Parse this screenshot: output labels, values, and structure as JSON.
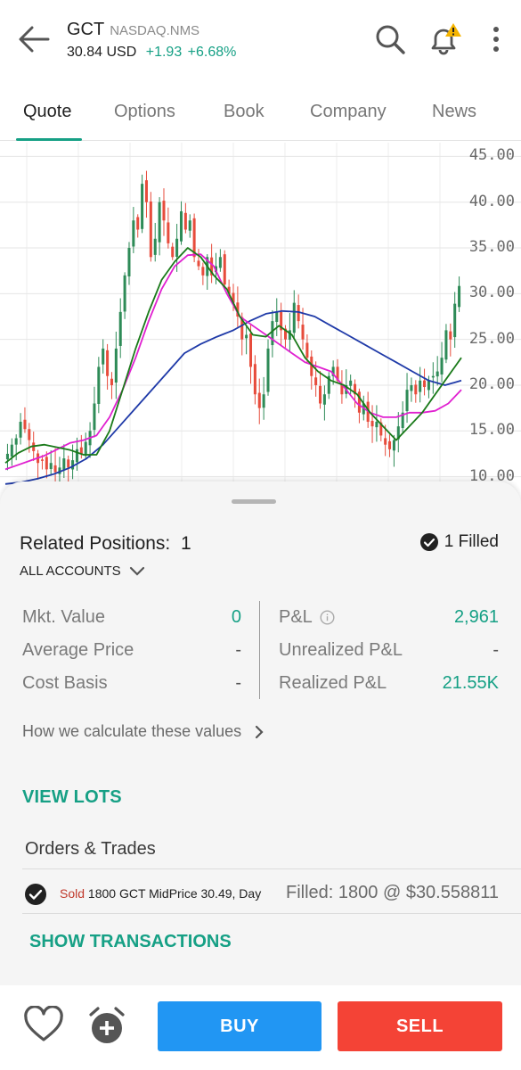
{
  "header": {
    "symbol": "GCT",
    "exchange": "NASDAQ.NMS",
    "price": "30.84",
    "currency": "USD",
    "change": "+1.93",
    "change_pct": "+6.68%",
    "icons": [
      "back-arrow-icon",
      "search-icon",
      "bell-alert-icon",
      "more-vert-icon"
    ],
    "colors": {
      "positive": "#16a085",
      "warning": "#f5b400"
    }
  },
  "tabs": [
    {
      "label": "Quote",
      "active": true
    },
    {
      "label": "Options",
      "active": false
    },
    {
      "label": "Book",
      "active": false
    },
    {
      "label": "Company",
      "active": false
    },
    {
      "label": "News",
      "active": false
    }
  ],
  "chart_data": {
    "type": "candlestick",
    "y_tick_labels": [
      "45.00",
      "40.00",
      "35.00",
      "30.00",
      "25.00",
      "20.00",
      "15.00",
      "10.00"
    ],
    "ylim": [
      8.5,
      46.5
    ],
    "grid": true,
    "colors": {
      "up": "#2e8b57",
      "down": "#e74c3c",
      "ma_fast": "#1a7a1a",
      "ma_mid": "#e020d0",
      "ma_slow": "#1f3aa8"
    },
    "closes": [
      12.5,
      13.5,
      14.2,
      16,
      15.2,
      14,
      12.8,
      11.5,
      11.8,
      10.8,
      11.5,
      10.5,
      11,
      12,
      11,
      11.8,
      13,
      12.5,
      13.8,
      15,
      18,
      22,
      24,
      21,
      20,
      24,
      28,
      32,
      35,
      38,
      37,
      42,
      40,
      34,
      36,
      40,
      38,
      35.5,
      34,
      36,
      39,
      37,
      38,
      34,
      33,
      32,
      34,
      32,
      33,
      34,
      31,
      30,
      29,
      27.5,
      25,
      25.5,
      22,
      19,
      17.5,
      19,
      24,
      27,
      28,
      26,
      25,
      26,
      29,
      27,
      25,
      23,
      21,
      20,
      18,
      19,
      21,
      22,
      20.5,
      19,
      20,
      20.5,
      19,
      17,
      18,
      16,
      15.5,
      16,
      14.5,
      13.5,
      13,
      14,
      15.5,
      17,
      19.5,
      20,
      19,
      20.5,
      19.8,
      20.5,
      21,
      21.5,
      23,
      26,
      25,
      28.9,
      30.84
    ],
    "moving_averages": {
      "fast": [
        11.5,
        12.6,
        13.3,
        13.5,
        13.2,
        12.9,
        12.4,
        12.4,
        15,
        19.5,
        24,
        28,
        31.5,
        33.5,
        35,
        34,
        32,
        30.5,
        27.5,
        25.5,
        25.3,
        26.5,
        25.5,
        23,
        21.5,
        20.5,
        20,
        19,
        17,
        15.5,
        14,
        15.5,
        17,
        19,
        21,
        23
      ],
      "mid": [
        10.8,
        11.3,
        11.8,
        12.3,
        13,
        13.7,
        14,
        14.5,
        16.5,
        19.5,
        23,
        27,
        30.5,
        33,
        34.2,
        34.3,
        33,
        30,
        27.5,
        26.5,
        25.5,
        24.5,
        23.5,
        22.5,
        22,
        21.5,
        19.8,
        18,
        17,
        16.5,
        16.5,
        17,
        17,
        17.2,
        18,
        19.5
      ],
      "slow": [
        9.2,
        9.4,
        9.8,
        10.3,
        11,
        12,
        13.5,
        15.5,
        17.5,
        19.5,
        21.5,
        23.5,
        24.5,
        25.3,
        26,
        27,
        27.8,
        28.1,
        28,
        27.5,
        26.5,
        25.5,
        24.5,
        23.5,
        22.5,
        21.5,
        20.5,
        20,
        20.5
      ]
    }
  },
  "positions": {
    "title": "Related Positions:",
    "count": "1",
    "filled_label": "1 Filled",
    "accounts_label": "ALL ACCOUNTS",
    "mkt_value_label": "Mkt. Value",
    "mkt_value": "0",
    "avg_price_label": "Average Price",
    "avg_price": "-",
    "cost_basis_label": "Cost Basis",
    "cost_basis": "-",
    "pnl_label": "P&L",
    "pnl": "2,961",
    "unrealized_label": "Unrealized P&L",
    "unrealized": "-",
    "realized_label": "Realized P&L",
    "realized": "21.55K",
    "how_calc_label": "How we calculate these values",
    "view_lots_label": "VIEW LOTS"
  },
  "orders": {
    "title": "Orders & Trades",
    "trade_side": "Sold",
    "trade_detail": "1800 GCT MidPrice 30.49, Day",
    "trade_fill": "Filled: 1800 @ $30.558811",
    "show_tx_label": "SHOW TRANSACTIONS"
  },
  "actions": {
    "buy_label": "BUY",
    "sell_label": "SELL",
    "icons": [
      "heart-icon",
      "alarm-add-icon"
    ]
  }
}
